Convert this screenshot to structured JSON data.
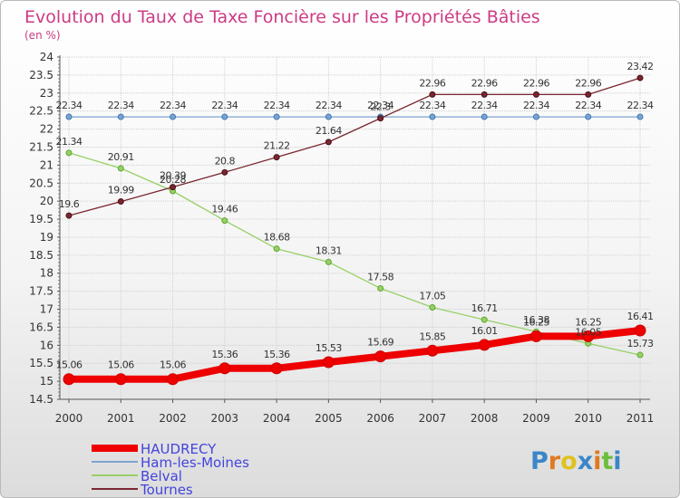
{
  "header": {
    "title": "Evolution du Taux de Taxe Foncière sur les Propriétés Bâties",
    "subtitle": "(en %)"
  },
  "logo": {
    "letters": [
      "P",
      "r",
      "o",
      "x",
      "i",
      "t",
      "i"
    ],
    "colors": [
      "#3a86c8",
      "#e07a1f",
      "#e0c21f",
      "#3a86c8",
      "#e07a1f",
      "#6cbf3a",
      "#3a86c8"
    ]
  },
  "chart_data": {
    "type": "line",
    "title": "Evolution du Taux de Taxe Foncière sur les Propriétés Bâties",
    "subtitle": "(en %)",
    "xlabel": "",
    "ylabel": "",
    "x": [
      "2000",
      "2001",
      "2002",
      "2003",
      "2004",
      "2005",
      "2006",
      "2007",
      "2008",
      "2009",
      "2010",
      "2011"
    ],
    "ylim": [
      14.5,
      24
    ],
    "yticks": [
      "14.5",
      "15",
      "15.5",
      "16",
      "16.5",
      "17",
      "17.5",
      "18",
      "18.5",
      "19",
      "19.5",
      "20",
      "20.5",
      "21",
      "21.5",
      "22",
      "22.5",
      "23",
      "23.5",
      "24"
    ],
    "grid": true,
    "legend_position": "bottom-left",
    "series": [
      {
        "name": "HAUDRECY",
        "color": "#ee0000",
        "values": [
          15.06,
          15.06,
          15.06,
          15.36,
          15.36,
          15.53,
          15.69,
          15.85,
          16.01,
          16.25,
          16.25,
          16.41
        ],
        "labels": [
          "15.06",
          "15.06",
          "15.06",
          "15.36",
          "15.36",
          "15.53",
          "15.69",
          "15.85",
          "16.01",
          "16.25",
          "16.25",
          "16.41"
        ]
      },
      {
        "name": "Ham-les-Moines",
        "color": "#7ba3cf",
        "values": [
          22.34,
          22.34,
          22.34,
          22.34,
          22.34,
          22.34,
          22.34,
          22.34,
          22.34,
          22.34,
          22.34,
          22.34
        ],
        "labels": [
          "22.34",
          "22.34",
          "22.34",
          "22.34",
          "22.34",
          "22.34",
          "22.34",
          "22.34",
          "22.34",
          "22.34",
          "22.34",
          "22.34"
        ]
      },
      {
        "name": "Belval",
        "color": "#96d066",
        "values": [
          21.34,
          20.91,
          20.28,
          19.46,
          18.68,
          18.31,
          17.58,
          17.05,
          16.71,
          16.38,
          16.05,
          15.73
        ],
        "labels": [
          "21.34",
          "20.91",
          "20.28",
          "19.46",
          "18.68",
          "18.31",
          "17.58",
          "17.05",
          "16.71",
          "16.38",
          "16.05",
          "15.73"
        ]
      },
      {
        "name": "Tournes",
        "color": "#7a2630",
        "values": [
          19.6,
          19.99,
          20.39,
          20.8,
          21.22,
          21.64,
          22.3,
          22.96,
          22.96,
          22.96,
          22.96,
          23.42
        ],
        "labels": [
          "19.6",
          "19.99",
          "20.39",
          "20.8",
          "21.22",
          "21.64",
          "22.3",
          "22.96",
          "22.96",
          "22.96",
          "22.96",
          "23.42"
        ]
      }
    ]
  }
}
